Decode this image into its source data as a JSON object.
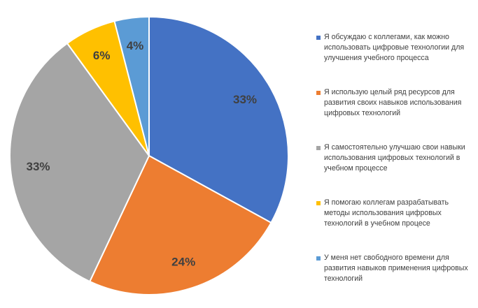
{
  "chart_data": {
    "type": "pie",
    "start_angle_deg": 0,
    "direction": "clockwise",
    "legend_position": "right",
    "slices": [
      {
        "label": "Я обсуждаю с коллегами, как можно использовать цифровые технологии для улучшения учебного процесса",
        "value": 33,
        "display": "33%",
        "color": "#4472C4"
      },
      {
        "label": "Я использую целый ряд ресурсов для развития своих навыков использования цифровых технологий",
        "value": 24,
        "display": "24%",
        "color": "#ED7D31"
      },
      {
        "label": "Я самостоятельно улучшаю свои навыки использования цифровых технологий в учебном процессе",
        "value": 33,
        "display": "33%",
        "color": "#A5A5A5"
      },
      {
        "label": "Я помогаю коллегам разрабатывать методы использования цифровых технологий в учебном процесе",
        "value": 6,
        "display": "6%",
        "color": "#FFC000"
      },
      {
        "label": "У меня нет свободного времени для развития навыков применения цифровых технологий",
        "value": 4,
        "display": "4%",
        "color": "#5B9BD5"
      }
    ]
  }
}
